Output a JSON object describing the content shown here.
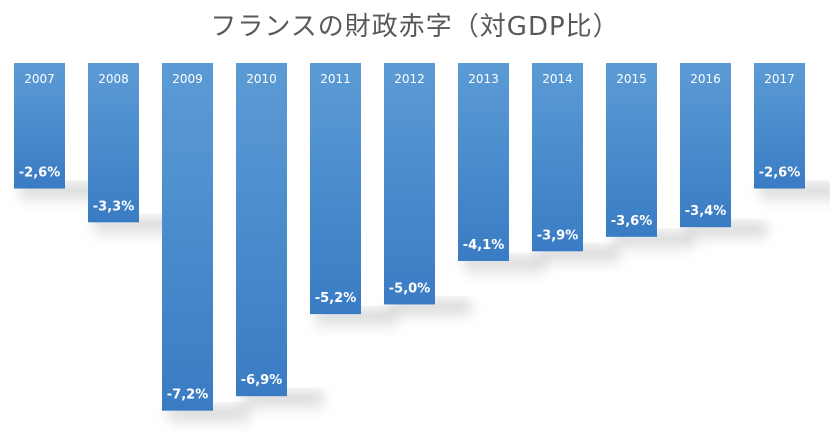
{
  "chart_data": {
    "type": "bar",
    "title": "フランスの財政赤字（対GDP比）",
    "categories": [
      "2007",
      "2008",
      "2009",
      "2010",
      "2011",
      "2012",
      "2013",
      "2014",
      "2015",
      "2016",
      "2017"
    ],
    "values": [
      -2.6,
      -3.3,
      -7.2,
      -6.9,
      -5.2,
      -5.0,
      -4.1,
      -3.9,
      -3.6,
      -3.4,
      -2.6
    ],
    "data_labels": [
      "-2,6%",
      "-3,3%",
      "-7,2%",
      "-6,9%",
      "-5,2%",
      "-5,0%",
      "-4,1%",
      "-3,9%",
      "-3,6%",
      "-3,4%",
      "-2,6%"
    ],
    "unit": "%",
    "ylim": [
      -7.6,
      0
    ],
    "xlabel": "",
    "ylabel": "",
    "grid": false,
    "legend": "none",
    "category_labels_position": "inside-top",
    "colors": {
      "bar_top": "#5b9bd5",
      "bar_bottom": "#3a7cc4",
      "label": "#ffffff",
      "title": "#595959"
    }
  }
}
